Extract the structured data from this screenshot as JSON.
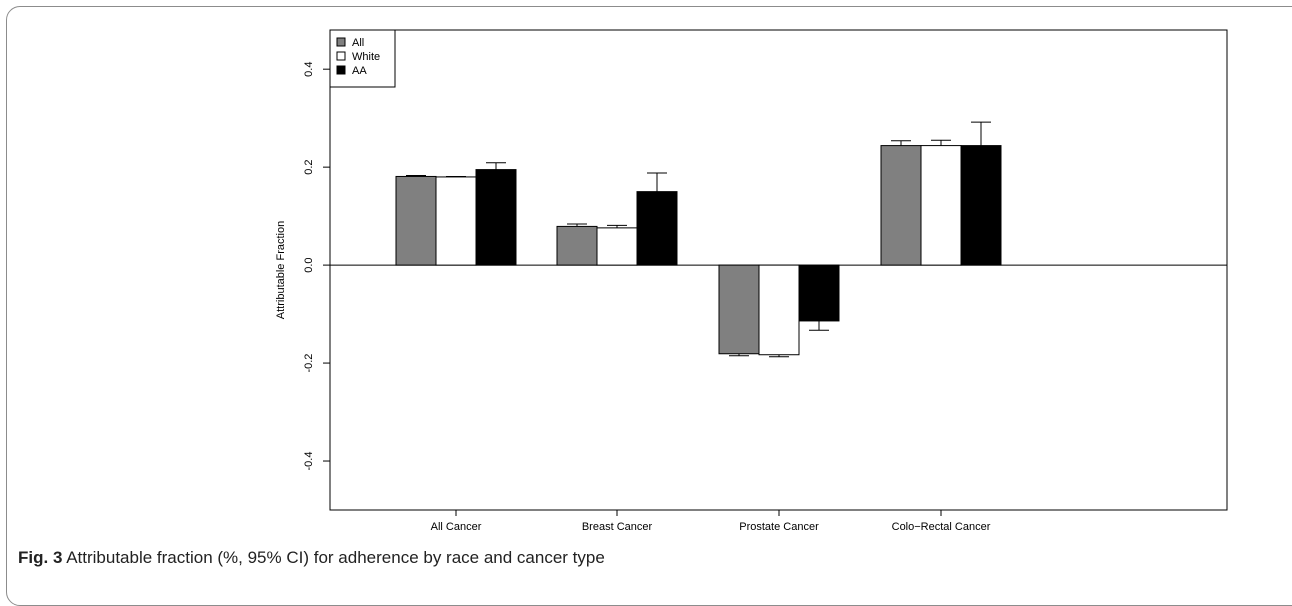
{
  "caption": {
    "label": "Fig. 3",
    "text": " Attributable fraction (%, 95% CI) for adherence by race and cancer type"
  },
  "chart_data": {
    "type": "bar",
    "title": "",
    "xlabel": "",
    "ylabel": "Attributable Fraction",
    "ylim": [
      -0.5,
      0.48
    ],
    "yticks": [
      -0.4,
      -0.2,
      0.0,
      0.2,
      0.4
    ],
    "ytick_labels": [
      "-0.4",
      "-0.2",
      "0.0",
      "0.2",
      "0.4"
    ],
    "categories": [
      "All Cancer",
      "Breast Cancer",
      "Prostate Cancer",
      "Colo−Rectal Cancer"
    ],
    "legend_position": "top-left",
    "series": [
      {
        "name": "All",
        "color": "#808080",
        "values": [
          0.181,
          0.079,
          -0.181,
          0.244
        ],
        "ci_upper": [
          0.183,
          0.084,
          null,
          0.254
        ],
        "ci_lower": [
          null,
          null,
          -0.185,
          null
        ]
      },
      {
        "name": "White",
        "color": "#ffffff",
        "values": [
          0.18,
          0.076,
          -0.183,
          0.244
        ],
        "ci_upper": [
          0.181,
          0.081,
          null,
          0.255
        ],
        "ci_lower": [
          null,
          null,
          -0.187,
          null
        ]
      },
      {
        "name": "AA",
        "color": "#000000",
        "values": [
          0.195,
          0.15,
          -0.114,
          0.244
        ],
        "ci_upper": [
          0.209,
          0.188,
          null,
          0.292
        ],
        "ci_lower": [
          null,
          null,
          -0.133,
          null
        ]
      }
    ]
  }
}
